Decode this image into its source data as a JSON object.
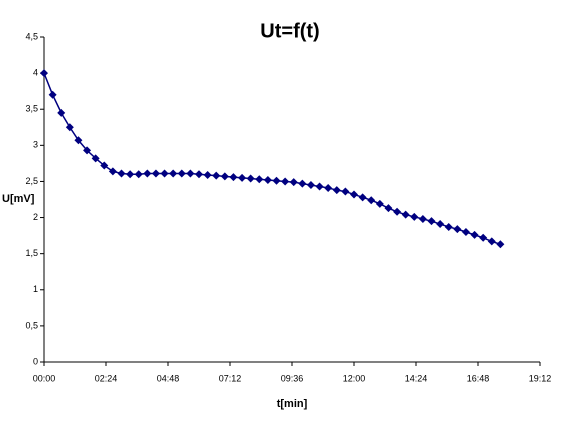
{
  "chart_data": {
    "type": "line",
    "title": "Ut=f(t)",
    "x_label": "t[min]",
    "y_label": "U[mV]",
    "x": [
      0,
      20,
      40,
      60,
      80,
      100,
      120,
      140,
      160,
      180,
      200,
      220,
      240,
      260,
      280,
      300,
      320,
      340,
      360,
      380,
      400,
      420,
      440,
      460,
      480,
      500,
      520,
      540,
      560,
      580,
      600,
      620,
      640,
      660,
      680,
      700,
      720,
      740,
      760,
      780,
      800,
      820,
      840,
      860,
      880,
      900,
      920,
      940,
      960,
      980,
      1000,
      1020,
      1040,
      1060
    ],
    "series": [
      {
        "name": "U",
        "color": "#000080",
        "values": [
          4.0,
          3.7,
          3.45,
          3.25,
          3.07,
          2.93,
          2.82,
          2.72,
          2.64,
          2.61,
          2.6,
          2.6,
          2.61,
          2.61,
          2.61,
          2.61,
          2.61,
          2.61,
          2.6,
          2.59,
          2.58,
          2.57,
          2.56,
          2.55,
          2.54,
          2.53,
          2.52,
          2.51,
          2.5,
          2.49,
          2.47,
          2.45,
          2.43,
          2.41,
          2.38,
          2.36,
          2.32,
          2.28,
          2.24,
          2.19,
          2.13,
          2.08,
          2.04,
          2.01,
          1.98,
          1.95,
          1.91,
          1.87,
          1.84,
          1.8,
          1.76,
          1.72,
          1.67,
          1.63
        ]
      }
    ],
    "xlim": [
      0,
      1152
    ],
    "xticks": [
      {
        "value": 0,
        "label": "00:00"
      },
      {
        "value": 144,
        "label": "02:24"
      },
      {
        "value": 288,
        "label": "04:48"
      },
      {
        "value": 432,
        "label": "07:12"
      },
      {
        "value": 576,
        "label": "09:36"
      },
      {
        "value": 720,
        "label": "12:00"
      },
      {
        "value": 864,
        "label": "14:24"
      },
      {
        "value": 1008,
        "label": "16:48"
      },
      {
        "value": 1152,
        "label": "19:12"
      }
    ],
    "ylim": [
      0,
      4.5
    ],
    "yticks": [
      0,
      {
        "value": 0.5,
        "label": "0,5"
      },
      1,
      {
        "value": 1.5,
        "label": "1,5"
      },
      2,
      {
        "value": 2.5,
        "label": "2,5"
      },
      3,
      {
        "value": 3.5,
        "label": "3,5"
      },
      4,
      {
        "value": 4.5,
        "label": "4,5"
      }
    ],
    "grid": false
  }
}
